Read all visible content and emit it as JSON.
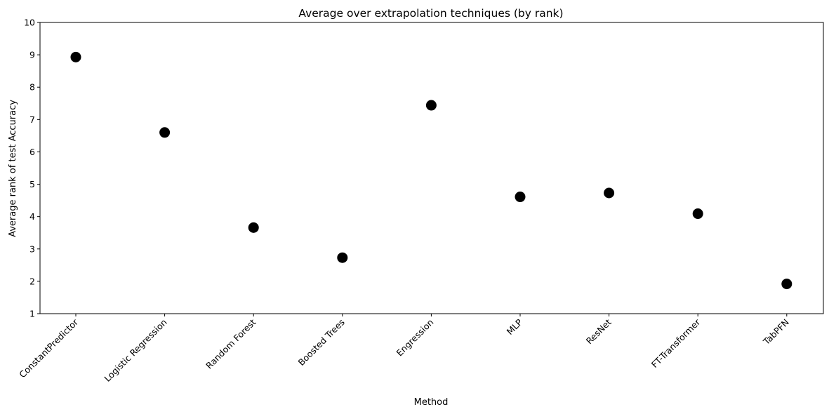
{
  "chart_data": {
    "type": "scatter",
    "title": "Average over extrapolation techniques (by rank)",
    "xlabel": "Method",
    "ylabel": "Average rank of test Accuracy",
    "categories": [
      "ConstantPredictor",
      "Logistic Regression",
      "Random Forest",
      "Boosted Trees",
      "Engression",
      "MLP",
      "ResNet",
      "FT-Transformer",
      "TabPFN"
    ],
    "values": [
      8.93,
      6.6,
      3.66,
      2.73,
      7.44,
      4.61,
      4.73,
      4.09,
      1.92
    ],
    "ylim": [
      1,
      10
    ],
    "yticks": [
      1,
      2,
      3,
      4,
      5,
      6,
      7,
      8,
      9,
      10
    ],
    "grid": false,
    "legend": "none",
    "marker_color": "#000000"
  }
}
